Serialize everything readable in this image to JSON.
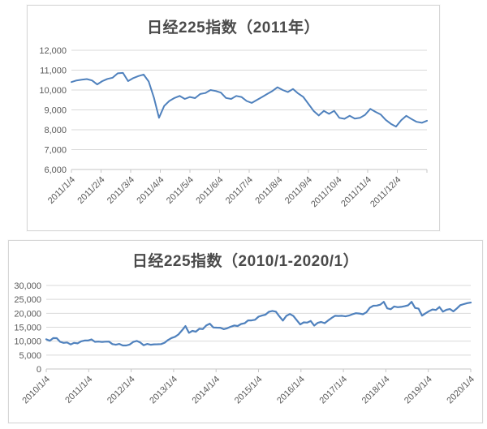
{
  "page": {
    "background_color": "#ffffff",
    "panel_border_color": "#d6d6d6"
  },
  "chart_data": [
    {
      "type": "line",
      "title": "日经225指数（2011年）",
      "xlabel": "",
      "ylabel": "",
      "ylim": [
        6000,
        12000
      ],
      "grid": true,
      "legend": "none",
      "line_color": "#4f81bd",
      "grid_color": "#d9d9d9",
      "axis_color": "#c6c6c6",
      "label_color": "#595959",
      "title_color": "#4a4a4a",
      "y_tick_labels": [
        "12,000",
        "11,000",
        "10,000",
        "9,000",
        "8,000",
        "7,000",
        "6,000"
      ],
      "x_tick_labels": [
        "2011/1/4",
        "2011/2/4",
        "2011/3/4",
        "2011/4/4",
        "2011/5/4",
        "2011/6/4",
        "2011/7/4",
        "2011/8/4",
        "2011/9/4",
        "2011/10/4",
        "2011/11/4",
        "2011/12/4"
      ],
      "x_tick_segments": 12,
      "values": [
        10400,
        10480,
        10520,
        10550,
        10480,
        10280,
        10450,
        10560,
        10620,
        10840,
        10860,
        10450,
        10600,
        10700,
        10780,
        10430,
        9620,
        8605,
        9200,
        9450,
        9600,
        9700,
        9550,
        9650,
        9590,
        9800,
        9850,
        10000,
        9950,
        9870,
        9600,
        9550,
        9700,
        9650,
        9450,
        9350,
        9500,
        9650,
        9800,
        9950,
        10140,
        10000,
        9900,
        10050,
        9830,
        9650,
        9300,
        8950,
        8720,
        8950,
        8800,
        8950,
        8600,
        8550,
        8700,
        8560,
        8600,
        8750,
        9050,
        8900,
        8770,
        8500,
        8300,
        8160,
        8480,
        8700,
        8540,
        8400,
        8350,
        8455
      ]
    },
    {
      "type": "line",
      "title": "日经225指数（2010/1-2020/1）",
      "xlabel": "",
      "ylabel": "",
      "ylim": [
        0,
        30000
      ],
      "grid": true,
      "legend": "none",
      "line_color": "#4f81bd",
      "grid_color": "#d9d9d9",
      "axis_color": "#c6c6c6",
      "label_color": "#595959",
      "title_color": "#4a4a4a",
      "y_tick_labels": [
        "30,000",
        "25,000",
        "20,000",
        "15,000",
        "10,000",
        "5,000",
        "0"
      ],
      "x_tick_labels": [
        "2010/1/4",
        "2011/1/4",
        "2012/1/4",
        "2013/1/4",
        "2014/1/4",
        "2015/1/4",
        "2016/1/4",
        "2017/1/4",
        "2018/1/4",
        "2019/1/4",
        "2020/1/4"
      ],
      "x_tick_segments": 10,
      "values": [
        10654,
        10126,
        11090,
        11057,
        9769,
        9383,
        9537,
        8824,
        9369,
        9202,
        9937,
        10229,
        10237,
        10624,
        9755,
        9850,
        9694,
        9816,
        9833,
        8955,
        8700,
        8988,
        8435,
        8455,
        8803,
        9723,
        10084,
        9521,
        8543,
        9007,
        8695,
        8840,
        8870,
        8928,
        9446,
        10395,
        11139,
        11559,
        12398,
        13861,
        15400,
        13000,
        13677,
        13389,
        14456,
        14328,
        15662,
        16291,
        14914,
        14841,
        14828,
        14304,
        14632,
        15162,
        15621,
        15425,
        16174,
        16414,
        17460,
        17451,
        17674,
        18798,
        19207,
        19520,
        20563,
        20868,
        20585,
        18890,
        17388,
        19083,
        19747,
        19034,
        17518,
        15989,
        16759,
        16666,
        17235,
        15576,
        16569,
        16887,
        16450,
        17425,
        18308,
        19114,
        19041,
        19119,
        18909,
        19197,
        19651,
        20033,
        19925,
        19646,
        20356,
        22012,
        22725,
        22765,
        23098,
        24124,
        21778,
        21454,
        22468,
        22202,
        22305,
        22554,
        22865,
        24120,
        21920,
        21680,
        19156,
        20015,
        20773,
        21385,
        21206,
        22259,
        20601,
        21276,
        21522,
        20704,
        21756,
        22927,
        23294,
        23657,
        23850
      ]
    }
  ]
}
